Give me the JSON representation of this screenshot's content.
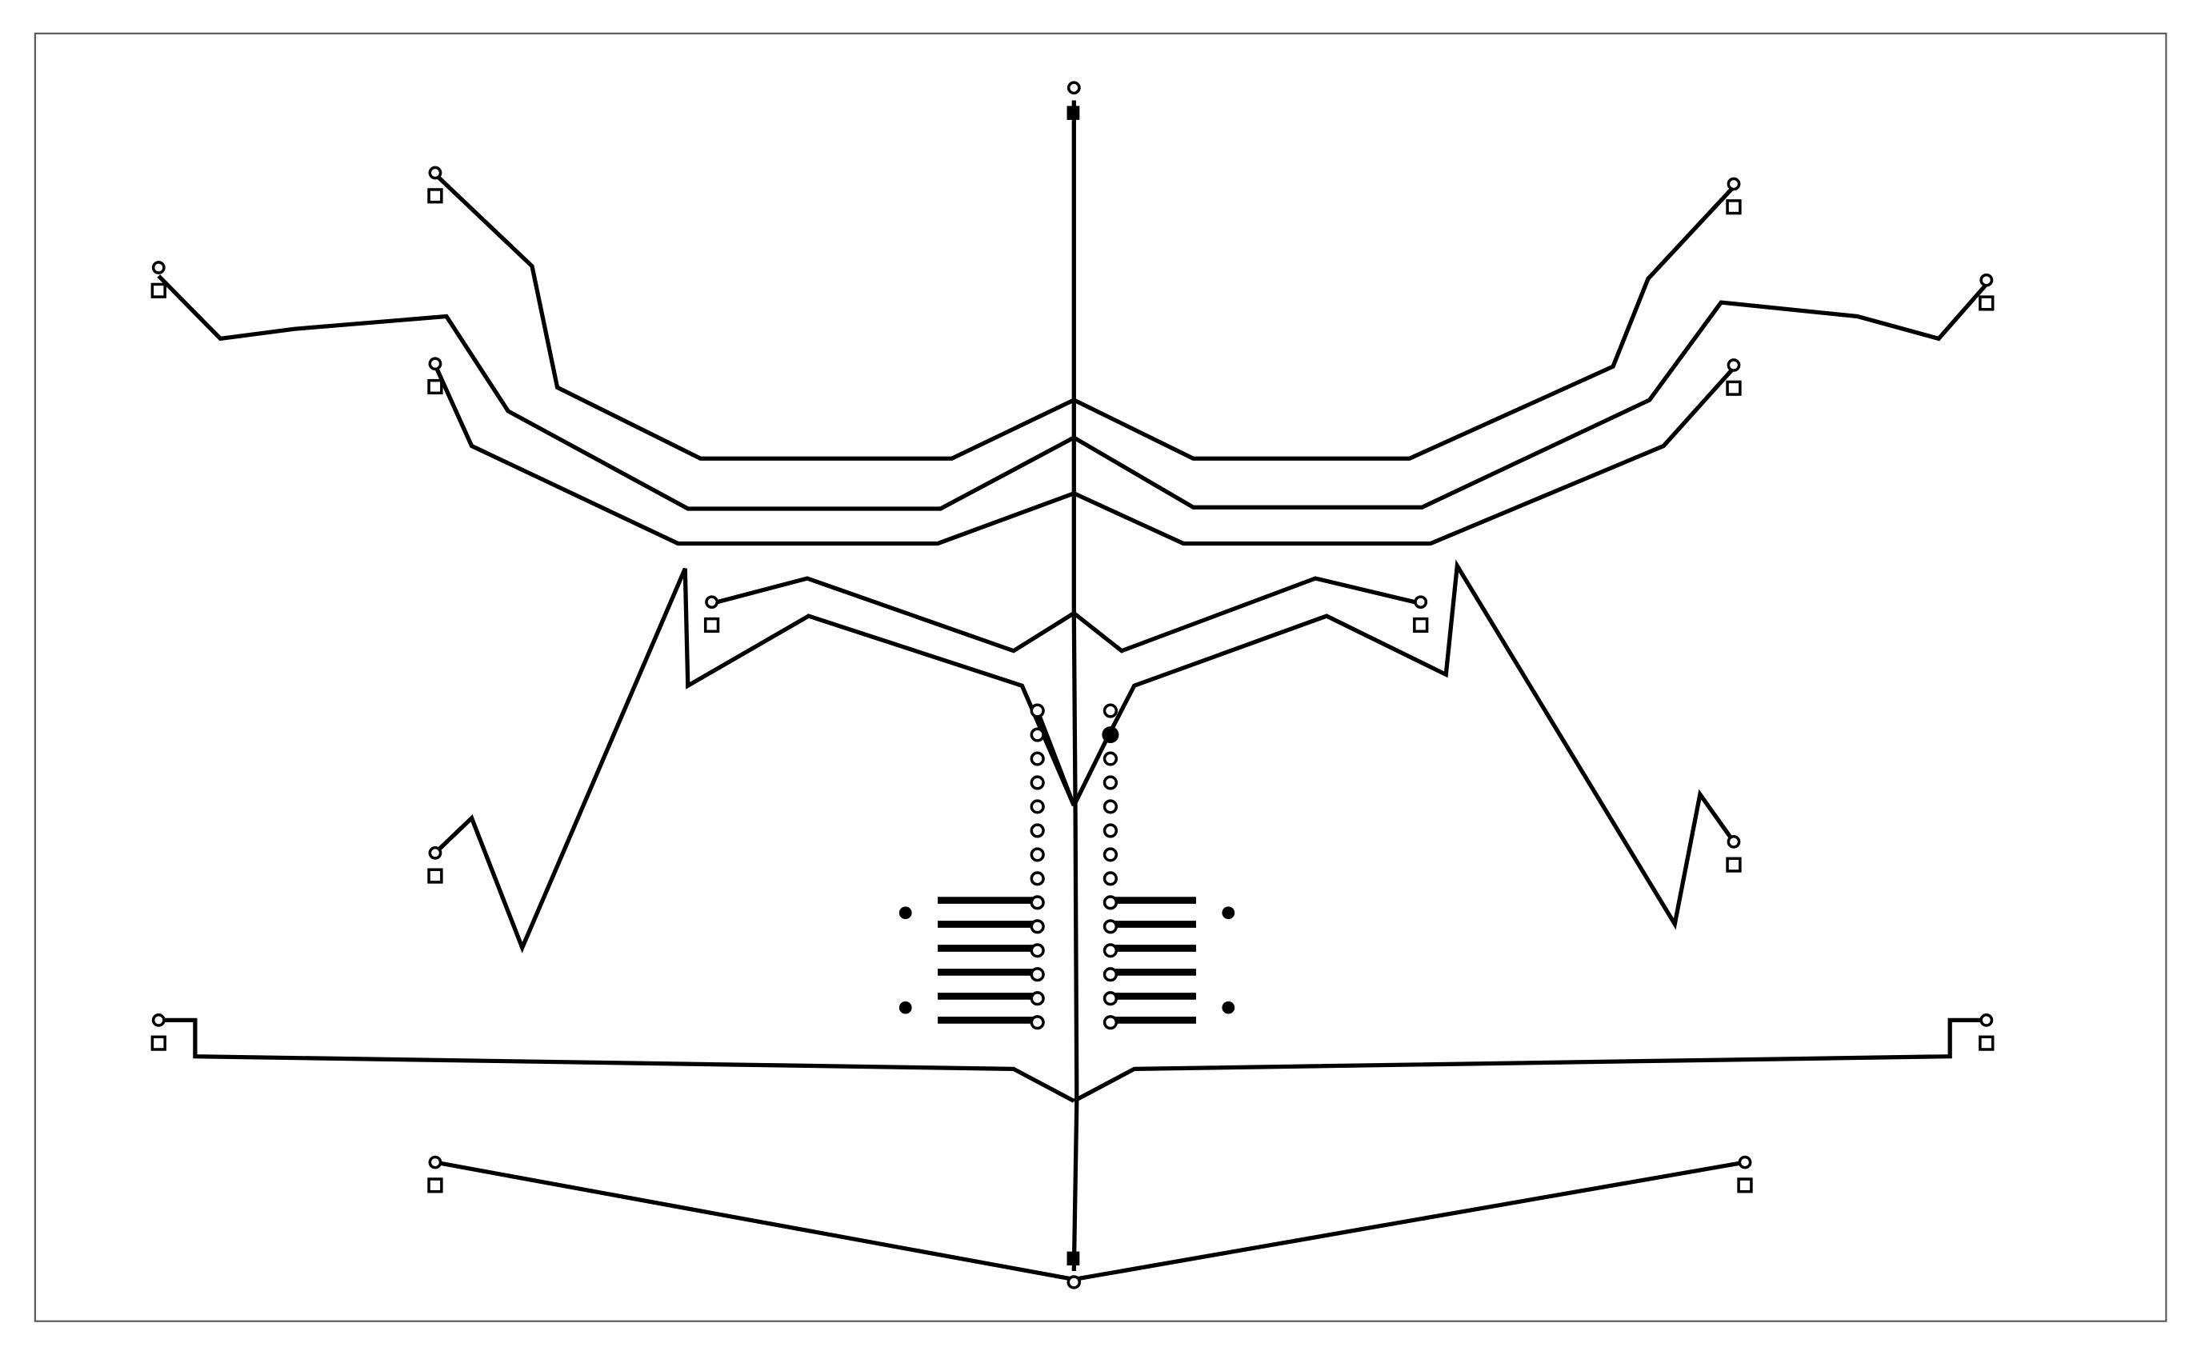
{
  "diagram": {
    "type": "pcb-trace-layout",
    "colors": {
      "background": "#ffffff",
      "trace": "#000000",
      "frame": "#555555"
    },
    "components": {
      "pad_pairs": 20,
      "header_pins_per_column": 14,
      "smd_pads_per_side": 6,
      "mounting_dots": 4,
      "trunk_square_pads": 2
    }
  }
}
